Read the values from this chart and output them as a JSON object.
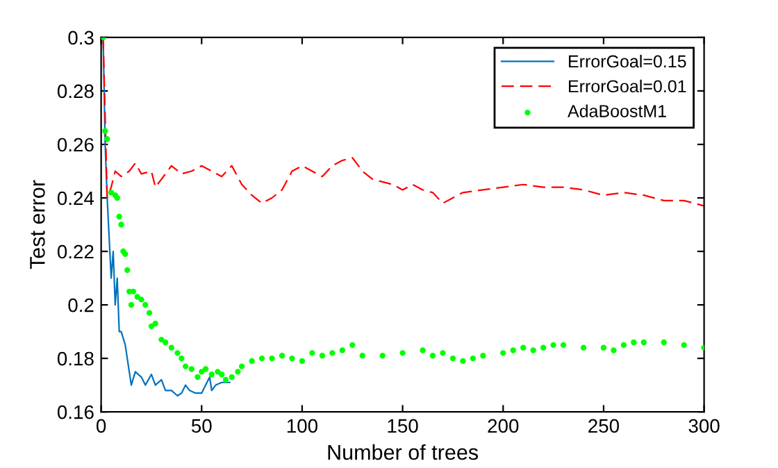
{
  "chart_data": {
    "type": "line",
    "xlabel": "Number of trees",
    "ylabel": "Test error",
    "xlim": [
      0,
      300
    ],
    "ylim": [
      0.16,
      0.3
    ],
    "xticks": [
      0,
      50,
      100,
      150,
      200,
      250,
      300
    ],
    "yticks": [
      0.16,
      0.18,
      0.2,
      0.22,
      0.24,
      0.26,
      0.28,
      0.3
    ],
    "grid": false,
    "legend": "top right",
    "series": [
      {
        "name": "ErrorGoal=0.15",
        "color": "#0072bd",
        "line_style": "solid",
        "marker": "none",
        "x": [
          1,
          2,
          3,
          4,
          5,
          6,
          7,
          8,
          9,
          10,
          12,
          14,
          15,
          17,
          20,
          22,
          25,
          27,
          30,
          32,
          35,
          38,
          40,
          42,
          44,
          47,
          50,
          52,
          54,
          55,
          57,
          60,
          64
        ],
        "values": [
          0.3,
          0.26,
          0.24,
          0.225,
          0.21,
          0.22,
          0.2,
          0.21,
          0.19,
          0.19,
          0.185,
          0.175,
          0.17,
          0.175,
          0.173,
          0.17,
          0.174,
          0.17,
          0.172,
          0.168,
          0.168,
          0.166,
          0.167,
          0.17,
          0.168,
          0.167,
          0.167,
          0.17,
          0.173,
          0.168,
          0.17,
          0.171,
          0.171
        ]
      },
      {
        "name": "ErrorGoal=0.01",
        "color": "#ff0000",
        "line_style": "dashed",
        "marker": "none",
        "x": [
          1,
          2,
          3,
          5,
          7,
          10,
          14,
          17,
          20,
          25,
          27,
          30,
          35,
          40,
          45,
          50,
          55,
          60,
          65,
          70,
          75,
          80,
          85,
          90,
          95,
          100,
          105,
          110,
          115,
          120,
          125,
          130,
          135,
          140,
          145,
          150,
          155,
          160,
          165,
          170,
          175,
          180,
          190,
          200,
          210,
          220,
          230,
          240,
          250,
          260,
          270,
          280,
          290,
          295,
          300
        ],
        "values": [
          0.3,
          0.27,
          0.24,
          0.244,
          0.25,
          0.248,
          0.25,
          0.253,
          0.249,
          0.25,
          0.244,
          0.247,
          0.252,
          0.249,
          0.25,
          0.252,
          0.25,
          0.248,
          0.252,
          0.245,
          0.241,
          0.238,
          0.24,
          0.243,
          0.25,
          0.252,
          0.25,
          0.248,
          0.252,
          0.254,
          0.255,
          0.25,
          0.247,
          0.246,
          0.245,
          0.243,
          0.245,
          0.243,
          0.242,
          0.238,
          0.24,
          0.242,
          0.243,
          0.244,
          0.245,
          0.244,
          0.244,
          0.243,
          0.241,
          0.242,
          0.241,
          0.239,
          0.239,
          0.238,
          0.237
        ]
      },
      {
        "name": "AdaBoostM1",
        "type": "scatter",
        "color": "#00ff00",
        "marker": "circle",
        "x": [
          1,
          2,
          3,
          5,
          7,
          8,
          9,
          10,
          11,
          12,
          13,
          14,
          15,
          16,
          18,
          20,
          22,
          24,
          25,
          27,
          30,
          32,
          35,
          38,
          40,
          42,
          45,
          48,
          50,
          52,
          55,
          58,
          60,
          62,
          65,
          68,
          70,
          75,
          80,
          85,
          90,
          95,
          100,
          105,
          110,
          115,
          120,
          125,
          130,
          140,
          150,
          160,
          165,
          170,
          175,
          180,
          185,
          190,
          200,
          205,
          210,
          215,
          220,
          225,
          230,
          240,
          250,
          255,
          260,
          265,
          270,
          280,
          290,
          300
        ],
        "values": [
          0.3,
          0.265,
          0.262,
          0.242,
          0.241,
          0.24,
          0.233,
          0.23,
          0.22,
          0.219,
          0.213,
          0.205,
          0.2,
          0.205,
          0.203,
          0.202,
          0.2,
          0.197,
          0.192,
          0.193,
          0.187,
          0.186,
          0.184,
          0.182,
          0.18,
          0.177,
          0.176,
          0.173,
          0.175,
          0.176,
          0.174,
          0.175,
          0.174,
          0.172,
          0.173,
          0.175,
          0.177,
          0.179,
          0.18,
          0.18,
          0.181,
          0.18,
          0.179,
          0.182,
          0.181,
          0.182,
          0.183,
          0.185,
          0.181,
          0.181,
          0.182,
          0.183,
          0.181,
          0.182,
          0.18,
          0.179,
          0.18,
          0.181,
          0.182,
          0.183,
          0.184,
          0.183,
          0.184,
          0.185,
          0.185,
          0.184,
          0.184,
          0.183,
          0.185,
          0.186,
          0.186,
          0.186,
          0.185,
          0.184
        ]
      }
    ]
  }
}
